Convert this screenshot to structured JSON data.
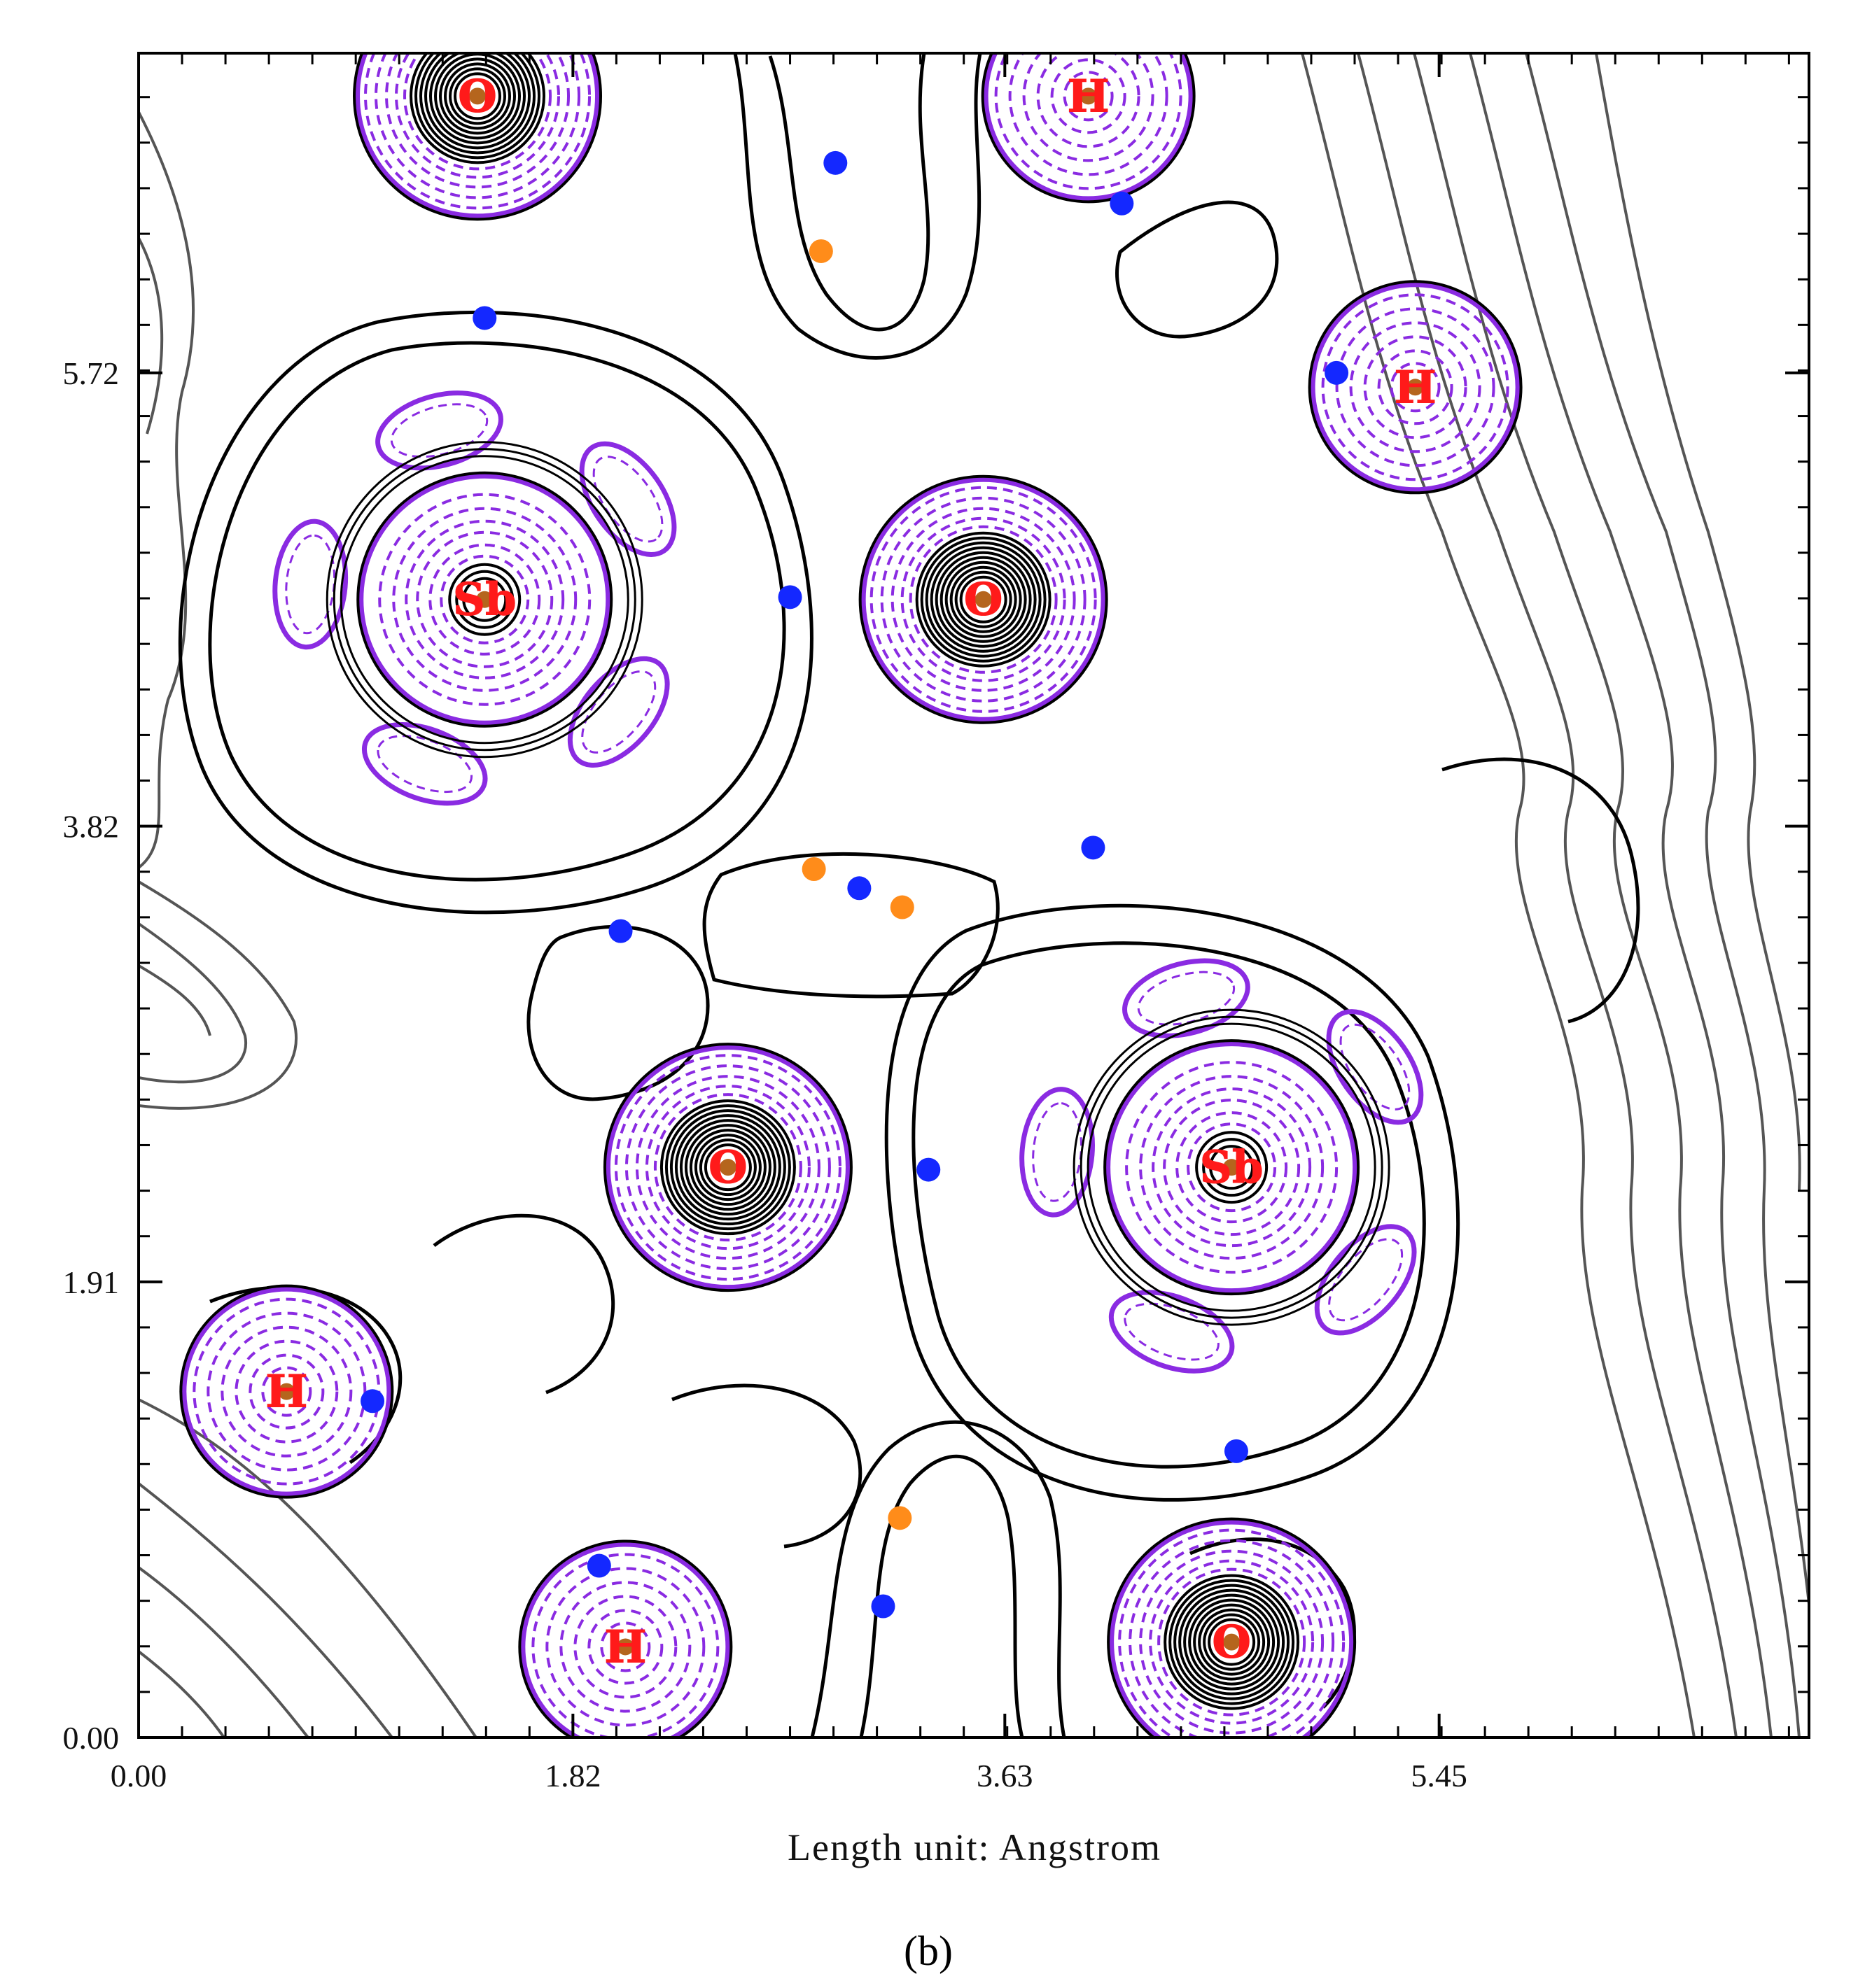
{
  "chart_data": {
    "type": "contour",
    "xlabel": "Length unit: Angstrom",
    "ylabel": "",
    "xlim": [
      0.0,
      7.0
    ],
    "ylim": [
      0.0,
      7.06
    ],
    "x_ticks": [
      {
        "value": 0.0,
        "label": "0.00"
      },
      {
        "value": 1.82,
        "label": "1.82"
      },
      {
        "value": 3.63,
        "label": "3.63"
      },
      {
        "value": 5.45,
        "label": "5.45"
      }
    ],
    "y_ticks": [
      {
        "value": 0.0,
        "label": "0.00"
      },
      {
        "value": 1.91,
        "label": "1.91"
      },
      {
        "value": 3.82,
        "label": "3.82"
      },
      {
        "value": 5.72,
        "label": "5.72"
      }
    ],
    "panel_label": "(b)",
    "atoms": [
      {
        "symbol": "O",
        "x": 1.42,
        "y": 6.88
      },
      {
        "symbol": "H",
        "x": 3.98,
        "y": 6.88
      },
      {
        "symbol": "H",
        "x": 5.35,
        "y": 5.66
      },
      {
        "symbol": "Sb",
        "x": 1.45,
        "y": 4.77
      },
      {
        "symbol": "O",
        "x": 3.54,
        "y": 4.77
      },
      {
        "symbol": "O",
        "x": 2.47,
        "y": 2.39
      },
      {
        "symbol": "Sb",
        "x": 4.58,
        "y": 2.39
      },
      {
        "symbol": "H",
        "x": 0.62,
        "y": 1.45
      },
      {
        "symbol": "H",
        "x": 2.04,
        "y": 0.38
      },
      {
        "symbol": "O",
        "x": 4.58,
        "y": 0.4
      }
    ],
    "critical_points": {
      "bond_cp_blue": [
        {
          "x": 2.92,
          "y": 6.6
        },
        {
          "x": 4.12,
          "y": 6.43
        },
        {
          "x": 1.45,
          "y": 5.95
        },
        {
          "x": 5.02,
          "y": 5.72
        },
        {
          "x": 2.73,
          "y": 4.78
        },
        {
          "x": 4.0,
          "y": 3.73
        },
        {
          "x": 3.02,
          "y": 3.56
        },
        {
          "x": 2.02,
          "y": 3.38
        },
        {
          "x": 3.31,
          "y": 2.38
        },
        {
          "x": 0.98,
          "y": 1.41
        },
        {
          "x": 4.6,
          "y": 1.2
        },
        {
          "x": 1.93,
          "y": 0.72
        },
        {
          "x": 3.12,
          "y": 0.55
        }
      ],
      "ring_cp_orange": [
        {
          "x": 2.86,
          "y": 6.23
        },
        {
          "x": 2.83,
          "y": 3.64
        },
        {
          "x": 3.2,
          "y": 3.48
        },
        {
          "x": 3.19,
          "y": 0.92
        }
      ]
    },
    "contour_sets": [
      "positive (solid black)",
      "negative (dashed purple)"
    ],
    "colors": {
      "positive": "#000000",
      "outer": "#555555",
      "negative": "#8a2be2",
      "fill": "#ffffff",
      "atom_label": "#ff1a1a",
      "bond_cp": "#1428ff",
      "ring_cp": "#ff8c1a",
      "nucleus": "#b5651d"
    },
    "grid": false,
    "legend": "none"
  }
}
